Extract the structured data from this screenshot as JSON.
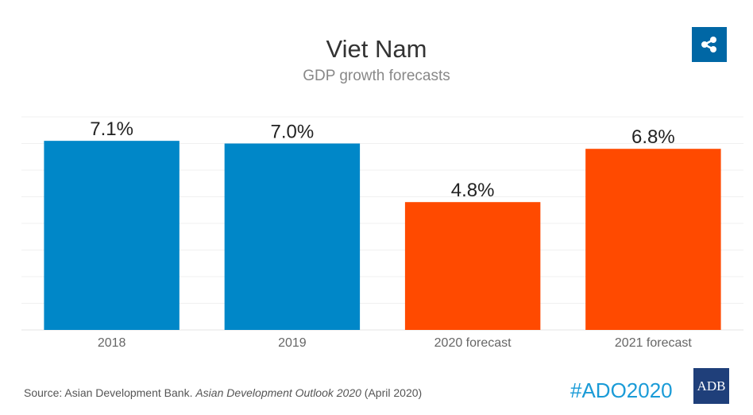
{
  "header": {
    "title": "Viet Nam",
    "subtitle": "GDP growth forecasts",
    "share_icon": "share-icon"
  },
  "chart_data": {
    "type": "bar",
    "title": "Viet Nam",
    "subtitle": "GDP growth forecasts",
    "categories": [
      "2018",
      "2019",
      "2020 forecast",
      "2021 forecast"
    ],
    "values": [
      7.1,
      7.0,
      4.8,
      6.8
    ],
    "data_labels": [
      "7.1%",
      "7.0%",
      "4.8%",
      "6.8%"
    ],
    "colors": [
      "#0087C8",
      "#0087C8",
      "#FF4A00",
      "#FF4A00"
    ],
    "xlabel": "",
    "ylabel": "",
    "ylim": [
      0,
      8
    ],
    "grid": true,
    "gridline_step": 1,
    "legend": "none"
  },
  "footer": {
    "source_prefix": "Source: Asian Development Bank. ",
    "source_italic": "Asian Development Outlook 2020",
    "source_suffix": " (April 2020)",
    "hashtag": "#ADO2020",
    "logo_text": "ADB"
  }
}
